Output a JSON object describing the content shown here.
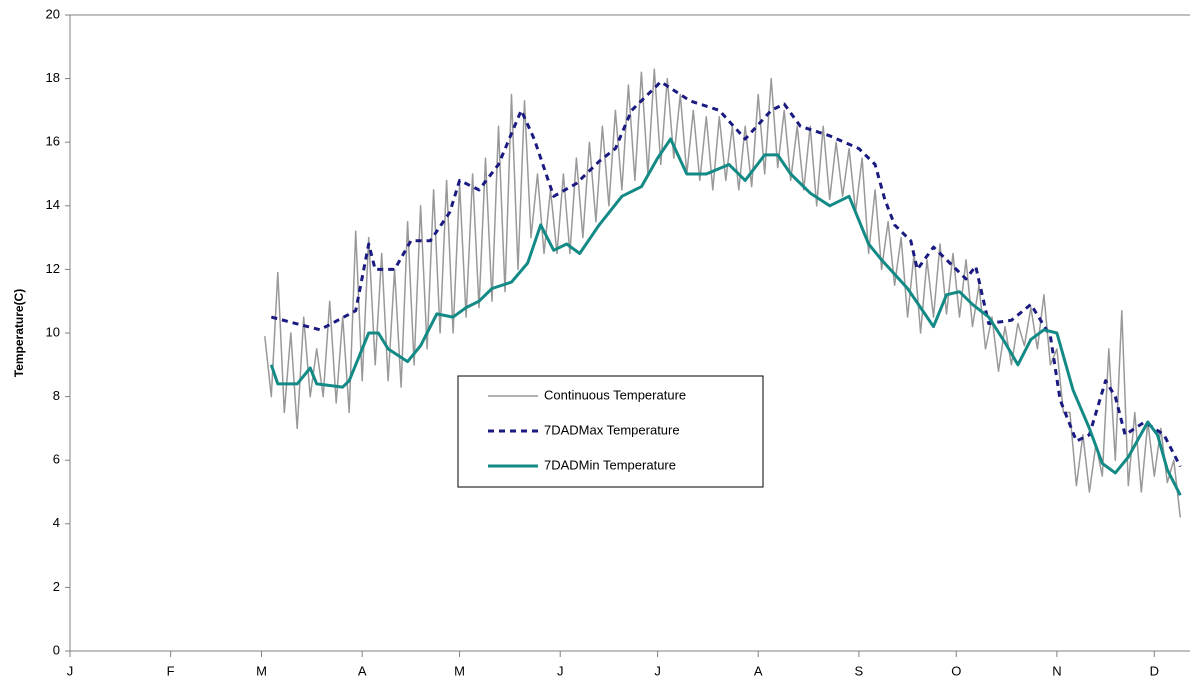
{
  "chart_data": {
    "type": "line",
    "y_label": "Temperature(C)",
    "xlim": [
      0,
      345
    ],
    "ylim": [
      0,
      20
    ],
    "xticks": [
      {
        "value": 0,
        "label": "J"
      },
      {
        "value": 31,
        "label": "F"
      },
      {
        "value": 59,
        "label": "M"
      },
      {
        "value": 90,
        "label": "A"
      },
      {
        "value": 120,
        "label": "M"
      },
      {
        "value": 151,
        "label": "J"
      },
      {
        "value": 181,
        "label": "J"
      },
      {
        "value": 212,
        "label": "A"
      },
      {
        "value": 243,
        "label": "S"
      },
      {
        "value": 273,
        "label": "O"
      },
      {
        "value": 304,
        "label": "N"
      },
      {
        "value": 334,
        "label": "D"
      }
    ],
    "yticks": [
      0,
      2,
      4,
      6,
      8,
      10,
      12,
      14,
      16,
      18,
      20
    ],
    "legend": "center",
    "series": [
      {
        "name": "Continuous Temperature",
        "color": "#999999",
        "line_style": "solid",
        "width": 1.5,
        "x": [
          60,
          62,
          64,
          66,
          68,
          70,
          72,
          74,
          76,
          78,
          80,
          82,
          84,
          86,
          88,
          90,
          92,
          94,
          96,
          98,
          100,
          102,
          104,
          106,
          108,
          110,
          112,
          114,
          116,
          118,
          120,
          122,
          124,
          126,
          128,
          130,
          132,
          134,
          136,
          138,
          140,
          142,
          144,
          146,
          148,
          150,
          152,
          154,
          156,
          158,
          160,
          162,
          164,
          166,
          168,
          170,
          172,
          174,
          176,
          178,
          180,
          182,
          184,
          186,
          188,
          190,
          192,
          194,
          196,
          198,
          200,
          202,
          204,
          206,
          208,
          210,
          212,
          214,
          216,
          218,
          220,
          222,
          224,
          226,
          228,
          230,
          232,
          234,
          236,
          238,
          240,
          242,
          244,
          246,
          248,
          250,
          252,
          254,
          256,
          258,
          260,
          262,
          264,
          266,
          268,
          270,
          272,
          274,
          276,
          278,
          280,
          282,
          284,
          286,
          288,
          290,
          292,
          294,
          296,
          298,
          300,
          302,
          304,
          306,
          308,
          310,
          312,
          314,
          316,
          318,
          320,
          322,
          324,
          326,
          328,
          330,
          332,
          334,
          336,
          338,
          340,
          342
        ],
        "values": [
          9.9,
          8.0,
          11.9,
          7.5,
          10.0,
          7.0,
          10.5,
          8.0,
          9.5,
          8.0,
          11.0,
          7.8,
          10.5,
          7.5,
          13.2,
          8.5,
          13.0,
          9.0,
          12.5,
          8.5,
          12.0,
          8.3,
          13.5,
          9.0,
          14.0,
          9.5,
          14.5,
          10.0,
          14.8,
          10.0,
          14.7,
          10.5,
          15.0,
          10.8,
          15.5,
          11.0,
          16.5,
          11.3,
          17.5,
          12.0,
          17.3,
          13.0,
          15.0,
          12.5,
          14.5,
          12.5,
          15.0,
          12.5,
          15.5,
          13.0,
          16.0,
          13.5,
          16.5,
          14.0,
          17.0,
          14.5,
          17.8,
          14.8,
          18.2,
          15.0,
          18.3,
          15.3,
          18.0,
          15.5,
          17.5,
          15.0,
          17.0,
          14.8,
          16.8,
          14.5,
          16.8,
          14.8,
          16.5,
          14.5,
          16.5,
          14.6,
          17.5,
          15.0,
          18.0,
          15.2,
          17.0,
          14.8,
          16.5,
          14.5,
          16.5,
          14.0,
          16.5,
          14.2,
          16.0,
          14.3,
          15.8,
          13.8,
          15.5,
          12.5,
          14.5,
          12.0,
          13.5,
          11.5,
          13.0,
          10.5,
          12.5,
          10.0,
          12.3,
          10.5,
          12.8,
          10.6,
          12.5,
          10.5,
          12.3,
          10.2,
          11.5,
          9.5,
          10.5,
          8.8,
          10.2,
          9.0,
          10.3,
          9.6,
          10.8,
          9.5,
          11.2,
          9.0,
          9.5,
          7.5,
          7.5,
          5.2,
          6.8,
          5.0,
          6.5,
          5.5,
          9.5,
          6.0,
          10.7,
          5.2,
          7.5,
          5.0,
          7.2,
          5.5,
          7.0,
          5.3,
          6.0,
          4.2
        ]
      },
      {
        "name": "7DADMax Temperature",
        "color": "#1a1a80",
        "line_style": "dashed",
        "width": 3,
        "x": [
          62,
          77,
          88,
          92,
          94,
          100,
          105,
          111,
          117,
          120,
          126,
          132,
          139,
          143,
          149,
          156,
          163,
          168,
          173,
          182,
          191,
          200,
          208,
          216,
          220,
          225,
          234,
          243,
          248,
          251,
          254,
          259,
          261,
          266,
          271,
          276,
          279,
          283,
          290,
          296,
          302,
          305,
          310,
          314,
          319,
          322,
          325,
          331,
          337,
          342
        ],
        "values": [
          10.5,
          10.1,
          10.7,
          12.8,
          12.0,
          12.0,
          12.9,
          12.9,
          13.8,
          14.8,
          14.5,
          15.3,
          17.0,
          16.1,
          14.3,
          14.7,
          15.4,
          15.8,
          17.0,
          17.9,
          17.3,
          17.0,
          16.1,
          17.0,
          17.2,
          16.5,
          16.2,
          15.8,
          15.3,
          14.2,
          13.4,
          12.9,
          12.0,
          12.7,
          12.2,
          11.7,
          12.1,
          10.3,
          10.4,
          10.9,
          9.9,
          7.9,
          6.6,
          6.8,
          8.5,
          8.0,
          6.8,
          7.2,
          6.8,
          5.8
        ]
      },
      {
        "name": "7DADMin Temperature",
        "color": "#138a85",
        "line_style": "solid",
        "width": 3,
        "x": [
          62,
          64,
          70,
          74,
          76,
          84,
          86,
          92,
          95,
          98,
          104,
          108,
          113,
          118,
          122,
          126,
          130,
          136,
          141,
          145,
          149,
          153,
          157,
          163,
          170,
          176,
          181,
          185,
          190,
          196,
          203,
          208,
          214,
          218,
          222,
          228,
          234,
          240,
          246,
          250,
          258,
          262,
          266,
          270,
          274,
          278,
          283,
          288,
          292,
          296,
          300,
          304,
          309,
          314,
          318,
          322,
          326,
          332,
          335,
          338,
          342
        ],
        "values": [
          9.0,
          8.4,
          8.4,
          8.9,
          8.4,
          8.3,
          8.5,
          10.0,
          10.0,
          9.5,
          9.1,
          9.6,
          10.6,
          10.5,
          10.8,
          11.0,
          11.4,
          11.6,
          12.2,
          13.4,
          12.6,
          12.8,
          12.5,
          13.4,
          14.3,
          14.6,
          15.5,
          16.1,
          15.0,
          15.0,
          15.3,
          14.8,
          15.6,
          15.6,
          15.0,
          14.4,
          14.0,
          14.3,
          12.8,
          12.3,
          11.4,
          10.8,
          10.2,
          11.2,
          11.3,
          10.9,
          10.5,
          9.7,
          9.0,
          9.8,
          10.1,
          10.0,
          8.2,
          7.0,
          5.9,
          5.6,
          6.1,
          7.2,
          6.8,
          5.7,
          4.9
        ]
      }
    ]
  }
}
